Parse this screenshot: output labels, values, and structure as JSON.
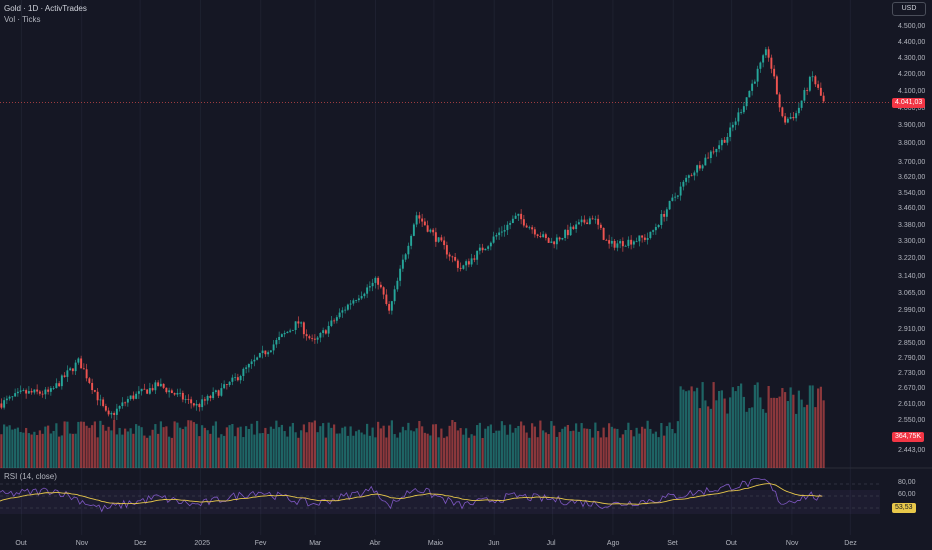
{
  "header": {
    "title": "Gold · 1D · ActivTrades",
    "volume_title": "Vol · Ticks",
    "currency": "USD"
  },
  "colors": {
    "up": "#26a69a",
    "down": "#ef5350",
    "background": "#151724",
    "rsi": "#7e57c2",
    "rsi_ma": "#e8c84a"
  },
  "price_axis": {
    "labels": [
      "4.500,00",
      "4.400,00",
      "4.300,00",
      "4.200,00",
      "4.100,00",
      "4.000,00",
      "3.900,00",
      "3.800,00",
      "3.700,00",
      "3.620,00",
      "3.540,00",
      "3.460,00",
      "3.380,00",
      "3.300,00",
      "3.220,00",
      "3.140,00",
      "3.065,00",
      "2.990,00",
      "2.910,00",
      "2.850,00",
      "2.790,00",
      "2.730,00",
      "2.670,00",
      "2.610,00",
      "2.550,00",
      "2.443,00"
    ]
  },
  "time_axis": {
    "labels": [
      "Out",
      "Nov",
      "Dez",
      "2025",
      "Fev",
      "Mar",
      "Abr",
      "Maio",
      "Jun",
      "Jul",
      "Ago",
      "Set",
      "Out",
      "Nov",
      "Dez"
    ]
  },
  "rsi": {
    "title": "RSI (14, close)",
    "axis_labels": [
      "80,00",
      "60,00",
      "40,00"
    ],
    "current": "53,53"
  },
  "badges": {
    "price": "4.041,03",
    "volume": "364,75K"
  },
  "chart_data": {
    "type": "candlestick",
    "title": "Gold · 1D · ActivTrades",
    "x_range": [
      "2024-09",
      "2025-12"
    ],
    "y_range": [
      2443,
      4500
    ],
    "y_scale": "log",
    "last_price": 4041.03,
    "close_path": [
      {
        "t": "2024-09-20",
        "v": 2620
      },
      {
        "t": "2024-10-01",
        "v": 2660
      },
      {
        "t": "2024-10-15",
        "v": 2660
      },
      {
        "t": "2024-10-30",
        "v": 2785
      },
      {
        "t": "2024-11-14",
        "v": 2565
      },
      {
        "t": "2024-11-25",
        "v": 2640
      },
      {
        "t": "2024-12-10",
        "v": 2690
      },
      {
        "t": "2024-12-30",
        "v": 2610
      },
      {
        "t": "2025-01-15",
        "v": 2690
      },
      {
        "t": "2025-01-31",
        "v": 2800
      },
      {
        "t": "2025-02-20",
        "v": 2945
      },
      {
        "t": "2025-02-28",
        "v": 2855
      },
      {
        "t": "2025-03-20",
        "v": 3040
      },
      {
        "t": "2025-04-02",
        "v": 3130
      },
      {
        "t": "2025-04-08",
        "v": 2985
      },
      {
        "t": "2025-04-22",
        "v": 3440
      },
      {
        "t": "2025-05-15",
        "v": 3180
      },
      {
        "t": "2025-06-13",
        "v": 3430
      },
      {
        "t": "2025-06-30",
        "v": 3300
      },
      {
        "t": "2025-07-22",
        "v": 3430
      },
      {
        "t": "2025-07-30",
        "v": 3290
      },
      {
        "t": "2025-08-20",
        "v": 3330
      },
      {
        "t": "2025-09-09",
        "v": 3630
      },
      {
        "t": "2025-09-30",
        "v": 3860
      },
      {
        "t": "2025-10-08",
        "v": 4040
      },
      {
        "t": "2025-10-20",
        "v": 4360
      },
      {
        "t": "2025-10-28",
        "v": 3930
      },
      {
        "t": "2025-11-04",
        "v": 3980
      },
      {
        "t": "2025-11-12",
        "v": 4200
      },
      {
        "t": "2025-11-18",
        "v": 4041
      }
    ],
    "volume_series": {
      "name": "Vol · Ticks",
      "last": "364,75K"
    },
    "rsi_series": {
      "name": "RSI (14, close)",
      "values": [
        {
          "t": "2024-09-20",
          "v": 62
        },
        {
          "t": "2024-10-18",
          "v": 70
        },
        {
          "t": "2024-11-12",
          "v": 38
        },
        {
          "t": "2024-12-10",
          "v": 58
        },
        {
          "t": "2024-12-30",
          "v": 45
        },
        {
          "t": "2025-01-31",
          "v": 68
        },
        {
          "t": "2025-02-28",
          "v": 46
        },
        {
          "t": "2025-04-02",
          "v": 72
        },
        {
          "t": "2025-04-08",
          "v": 42
        },
        {
          "t": "2025-04-22",
          "v": 74
        },
        {
          "t": "2025-05-15",
          "v": 44
        },
        {
          "t": "2025-06-13",
          "v": 60
        },
        {
          "t": "2025-07-30",
          "v": 45
        },
        {
          "t": "2025-08-20",
          "v": 52
        },
        {
          "t": "2025-10-20",
          "v": 86
        },
        {
          "t": "2025-10-28",
          "v": 48
        },
        {
          "t": "2025-11-12",
          "v": 62
        },
        {
          "t": "2025-11-18",
          "v": 53.53
        }
      ],
      "bands": [
        40,
        60,
        80
      ]
    }
  }
}
